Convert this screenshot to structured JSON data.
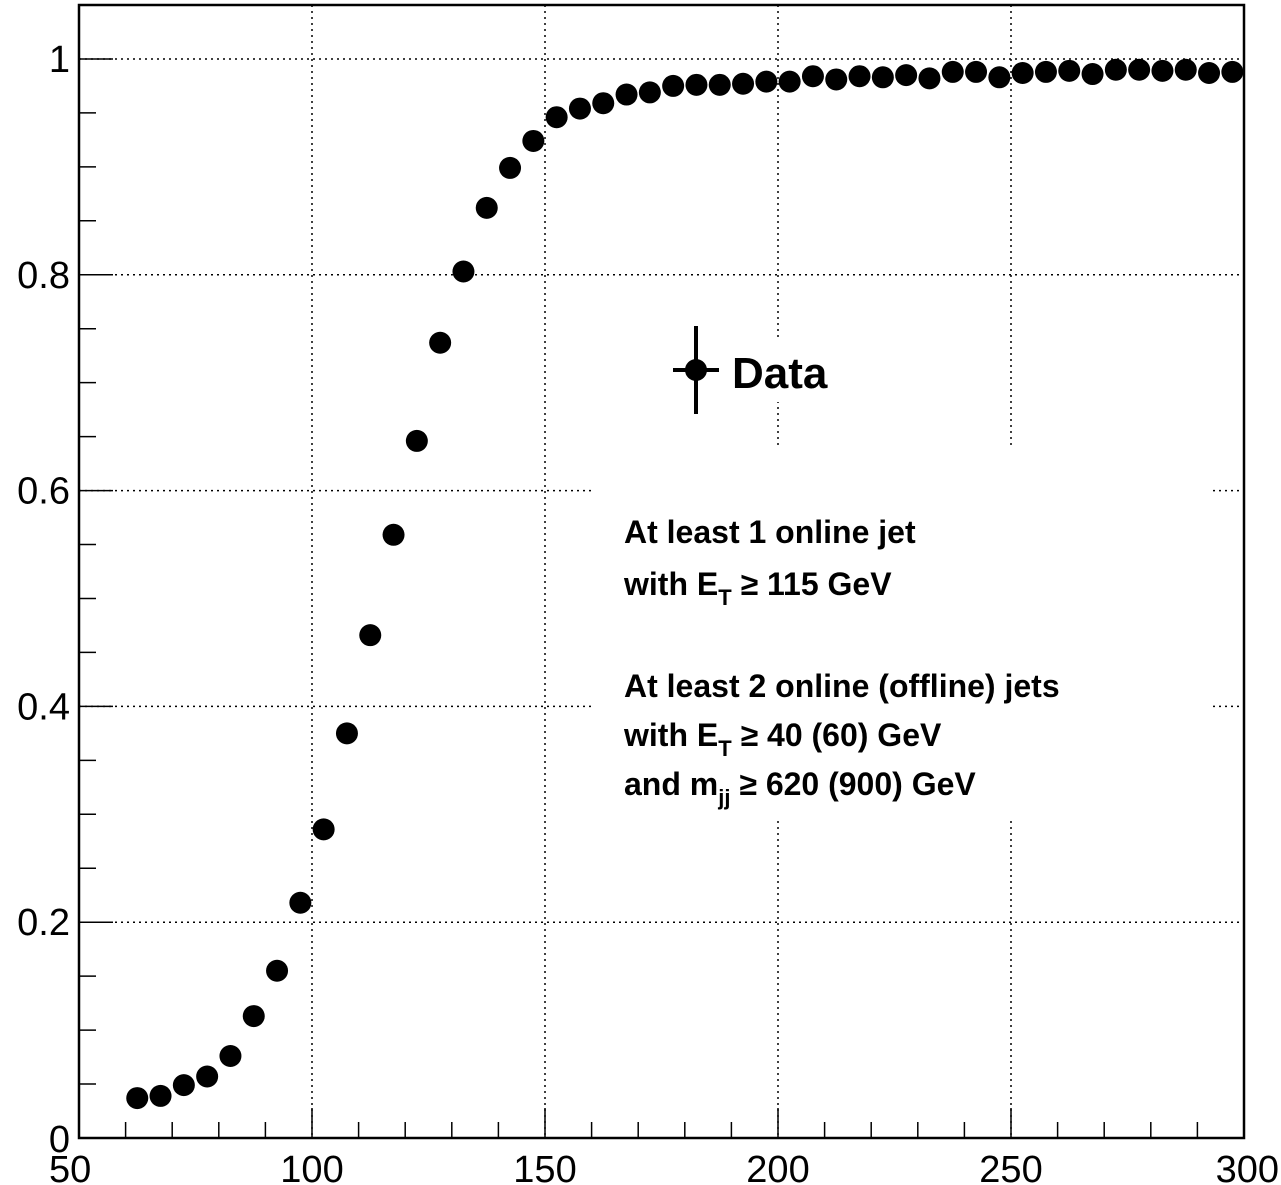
{
  "chart_data": {
    "type": "scatter",
    "title": "",
    "xlabel": "",
    "ylabel": "",
    "xlim": [
      50,
      300
    ],
    "ylim": [
      0,
      1.05
    ],
    "grid": true,
    "x_ticks": [
      "50",
      "100",
      "150",
      "200",
      "250",
      "300"
    ],
    "y_ticks": [
      "0",
      "0.2",
      "0.4",
      "0.6",
      "0.8",
      "1"
    ],
    "legend": {
      "label": "Data",
      "position": "upper-middle"
    },
    "annotations": {
      "l1": "At least 1 online jet",
      "l2_pre": "with E",
      "l2_sub": "T",
      "l2_post": " ≥ 115 GeV",
      "l3": "At least 2 online (offline) jets",
      "l4_pre": "with E",
      "l4_sub": "T",
      "l4_post": " ≥ 40 (60) GeV",
      "l5_pre": "and m",
      "l5_sub": "jj",
      "l5_post": " ≥ 620 (900) GeV"
    },
    "series": [
      {
        "x": [
          62.5,
          67.5,
          72.5,
          77.5,
          82.5,
          87.5,
          92.5,
          97.5,
          102.5,
          107.5,
          112.5,
          117.5,
          122.5,
          127.5,
          132.5,
          137.5,
          142.5,
          147.5,
          152.5,
          157.5,
          162.5,
          167.5,
          172.5,
          177.5,
          182.5,
          187.5,
          192.5,
          197.5,
          202.5,
          207.5,
          212.5,
          217.5,
          222.5,
          227.5,
          232.5,
          237.5,
          242.5,
          247.5,
          252.5,
          257.5,
          262.5,
          267.5,
          272.5,
          277.5,
          282.5,
          287.5,
          292.5,
          297.5
        ],
        "y": [
          0.037,
          0.039,
          0.049,
          0.057,
          0.076,
          0.113,
          0.155,
          0.218,
          0.286,
          0.375,
          0.466,
          0.559,
          0.646,
          0.737,
          0.803,
          0.862,
          0.899,
          0.924,
          0.946,
          0.954,
          0.959,
          0.967,
          0.969,
          0.975,
          0.976,
          0.976,
          0.977,
          0.979,
          0.979,
          0.984,
          0.981,
          0.984,
          0.983,
          0.985,
          0.982,
          0.988,
          0.988,
          0.983,
          0.987,
          0.988,
          0.989,
          0.986,
          0.99,
          0.99,
          0.989,
          0.99,
          0.987,
          0.988
        ]
      }
    ]
  }
}
